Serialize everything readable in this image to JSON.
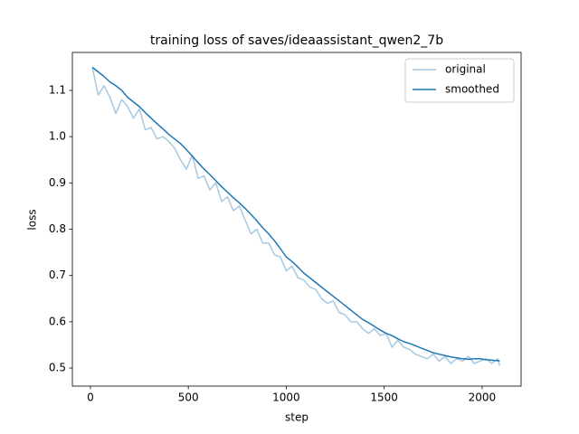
{
  "chart_data": {
    "type": "line",
    "title": "training loss of saves/ideaassistant_qwen2_7b",
    "x_label": "step",
    "y_label": "loss",
    "x": [
      10,
      40,
      70,
      100,
      130,
      160,
      190,
      220,
      250,
      280,
      310,
      340,
      370,
      400,
      430,
      460,
      490,
      520,
      550,
      580,
      610,
      640,
      670,
      700,
      730,
      760,
      790,
      820,
      850,
      880,
      910,
      940,
      970,
      1000,
      1030,
      1060,
      1090,
      1120,
      1150,
      1180,
      1210,
      1240,
      1270,
      1300,
      1330,
      1360,
      1390,
      1420,
      1450,
      1480,
      1510,
      1540,
      1570,
      1600,
      1630,
      1660,
      1690,
      1720,
      1750,
      1780,
      1810,
      1840,
      1870,
      1900,
      1930,
      1960,
      1990,
      2020,
      2050,
      2080,
      2090
    ],
    "series": [
      {
        "name": "original",
        "color": "#a5c9e1",
        "values": [
          1.15,
          1.09,
          1.11,
          1.085,
          1.05,
          1.08,
          1.065,
          1.04,
          1.06,
          1.015,
          1.02,
          0.995,
          1.0,
          0.99,
          0.975,
          0.95,
          0.93,
          0.96,
          0.91,
          0.915,
          0.885,
          0.9,
          0.86,
          0.87,
          0.84,
          0.85,
          0.82,
          0.79,
          0.8,
          0.77,
          0.77,
          0.745,
          0.74,
          0.71,
          0.72,
          0.695,
          0.69,
          0.675,
          0.67,
          0.65,
          0.64,
          0.645,
          0.62,
          0.615,
          0.6,
          0.6,
          0.585,
          0.575,
          0.585,
          0.57,
          0.575,
          0.545,
          0.56,
          0.545,
          0.54,
          0.53,
          0.525,
          0.52,
          0.53,
          0.515,
          0.525,
          0.51,
          0.52,
          0.515,
          0.525,
          0.51,
          0.515,
          0.52,
          0.51,
          0.52,
          0.505
        ]
      },
      {
        "name": "smoothed",
        "color": "#1f77b4",
        "values": [
          1.15,
          1.14,
          1.13,
          1.118,
          1.11,
          1.1,
          1.085,
          1.075,
          1.065,
          1.052,
          1.04,
          1.028,
          1.017,
          1.005,
          0.995,
          0.985,
          0.972,
          0.958,
          0.944,
          0.93,
          0.918,
          0.905,
          0.892,
          0.88,
          0.868,
          0.857,
          0.845,
          0.832,
          0.818,
          0.803,
          0.79,
          0.775,
          0.758,
          0.74,
          0.73,
          0.718,
          0.705,
          0.695,
          0.685,
          0.675,
          0.665,
          0.655,
          0.645,
          0.635,
          0.625,
          0.615,
          0.605,
          0.598,
          0.59,
          0.582,
          0.575,
          0.57,
          0.563,
          0.557,
          0.553,
          0.548,
          0.543,
          0.538,
          0.533,
          0.53,
          0.527,
          0.524,
          0.522,
          0.52,
          0.519,
          0.52,
          0.52,
          0.518,
          0.517,
          0.516,
          0.515
        ]
      }
    ],
    "xlim": [
      -92,
      2199
    ],
    "ylim": [
      0.461,
      1.182
    ],
    "xticks": [
      0,
      500,
      1000,
      1500,
      2000
    ],
    "yticks": [
      0.5,
      0.6,
      0.7,
      0.8,
      0.9,
      {
        "value": 1,
        "label": "1.0"
      },
      1.1
    ],
    "legend": "upper right",
    "grid": false
  }
}
